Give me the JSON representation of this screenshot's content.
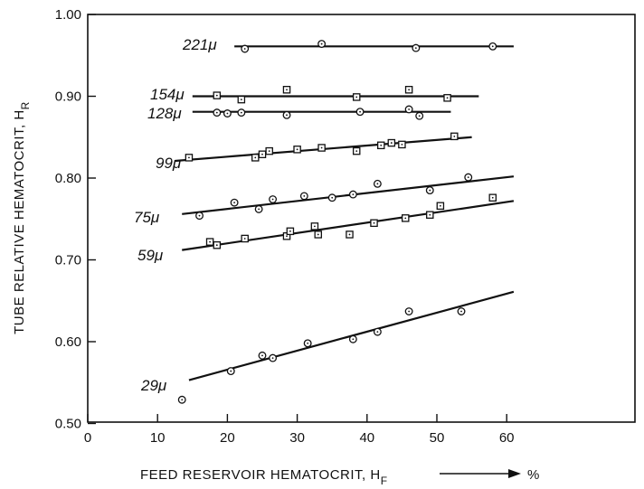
{
  "chart_data": {
    "type": "scatter",
    "xlabel": {
      "main": "FEED RESERVOIR HEMATOCRIT, H",
      "sub": "F",
      "unit": "%"
    },
    "ylabel": {
      "main": "TUBE RELATIVE HEMATOCRIT, H",
      "sub": "R"
    },
    "xlim": [
      0,
      70
    ],
    "ylim": [
      0.5,
      1.0
    ],
    "x_ticks": [
      0,
      10,
      20,
      30,
      40,
      50,
      60
    ],
    "x_tick_labels": [
      "0",
      "10",
      "20",
      "30",
      "40",
      "50",
      "60"
    ],
    "y_ticks": [
      0.5,
      0.6,
      0.7,
      0.8,
      0.9,
      1.0
    ],
    "y_tick_labels": [
      "0.50",
      "0.60",
      "0.70",
      "0.80",
      "0.90",
      "1.00"
    ],
    "grid": false,
    "series": [
      {
        "name": "221μ",
        "label_text": "221μ",
        "marker": "circle",
        "fit": [
          [
            21,
            0.961
          ],
          [
            61,
            0.961
          ]
        ],
        "points": [
          [
            22.5,
            0.958
          ],
          [
            33.5,
            0.964
          ],
          [
            47,
            0.959
          ],
          [
            58,
            0.961
          ]
        ]
      },
      {
        "name": "154μ",
        "label_text": "154μ",
        "marker": "square",
        "fit": [
          [
            15,
            0.9
          ],
          [
            56,
            0.9
          ]
        ],
        "points": [
          [
            18.5,
            0.901
          ],
          [
            22,
            0.896
          ],
          [
            28.5,
            0.908
          ],
          [
            38.5,
            0.899
          ],
          [
            46,
            0.908
          ],
          [
            51.5,
            0.898
          ]
        ]
      },
      {
        "name": "128μ",
        "label_text": "128μ",
        "marker": "circle",
        "fit": [
          [
            15,
            0.881
          ],
          [
            52,
            0.881
          ]
        ],
        "points": [
          [
            18.5,
            0.88
          ],
          [
            20,
            0.879
          ],
          [
            22,
            0.88
          ],
          [
            28.5,
            0.877
          ],
          [
            39,
            0.881
          ],
          [
            46,
            0.884
          ],
          [
            47.5,
            0.876
          ]
        ]
      },
      {
        "name": "99μ",
        "label_text": "99μ",
        "marker": "square",
        "fit": [
          [
            12.5,
            0.821
          ],
          [
            55,
            0.85
          ]
        ],
        "points": [
          [
            14.5,
            0.825
          ],
          [
            24,
            0.825
          ],
          [
            25,
            0.829
          ],
          [
            26,
            0.833
          ],
          [
            30,
            0.835
          ],
          [
            33.5,
            0.837
          ],
          [
            38.5,
            0.833
          ],
          [
            42,
            0.84
          ],
          [
            43.5,
            0.843
          ],
          [
            45,
            0.841
          ],
          [
            52.5,
            0.851
          ]
        ]
      },
      {
        "name": "75μ",
        "label_text": "75μ",
        "marker": "circle",
        "fit": [
          [
            13.5,
            0.756
          ],
          [
            61,
            0.802
          ]
        ],
        "points": [
          [
            16,
            0.754
          ],
          [
            21,
            0.77
          ],
          [
            24.5,
            0.762
          ],
          [
            26.5,
            0.774
          ],
          [
            31,
            0.778
          ],
          [
            35,
            0.776
          ],
          [
            38,
            0.78
          ],
          [
            41.5,
            0.793
          ],
          [
            49,
            0.785
          ],
          [
            54.5,
            0.801
          ]
        ]
      },
      {
        "name": "59μ",
        "label_text": "59μ",
        "marker": "square",
        "fit": [
          [
            13.5,
            0.712
          ],
          [
            61,
            0.772
          ]
        ],
        "points": [
          [
            17.5,
            0.722
          ],
          [
            18.5,
            0.718
          ],
          [
            22.5,
            0.726
          ],
          [
            28.5,
            0.729
          ],
          [
            29,
            0.735
          ],
          [
            32.5,
            0.741
          ],
          [
            33,
            0.731
          ],
          [
            37.5,
            0.731
          ],
          [
            41,
            0.745
          ],
          [
            45.5,
            0.751
          ],
          [
            49,
            0.755
          ],
          [
            50.5,
            0.766
          ],
          [
            58,
            0.776
          ]
        ]
      },
      {
        "name": "29μ",
        "label_text": "29μ",
        "marker": "circle",
        "fit": [
          [
            14.5,
            0.553
          ],
          [
            61,
            0.661
          ]
        ],
        "points": [
          [
            13.5,
            0.529
          ],
          [
            20.5,
            0.564
          ],
          [
            25,
            0.583
          ],
          [
            26.5,
            0.58
          ],
          [
            31.5,
            0.598
          ],
          [
            38,
            0.603
          ],
          [
            41.5,
            0.612
          ],
          [
            46,
            0.637
          ],
          [
            53.5,
            0.637
          ]
        ]
      }
    ]
  }
}
